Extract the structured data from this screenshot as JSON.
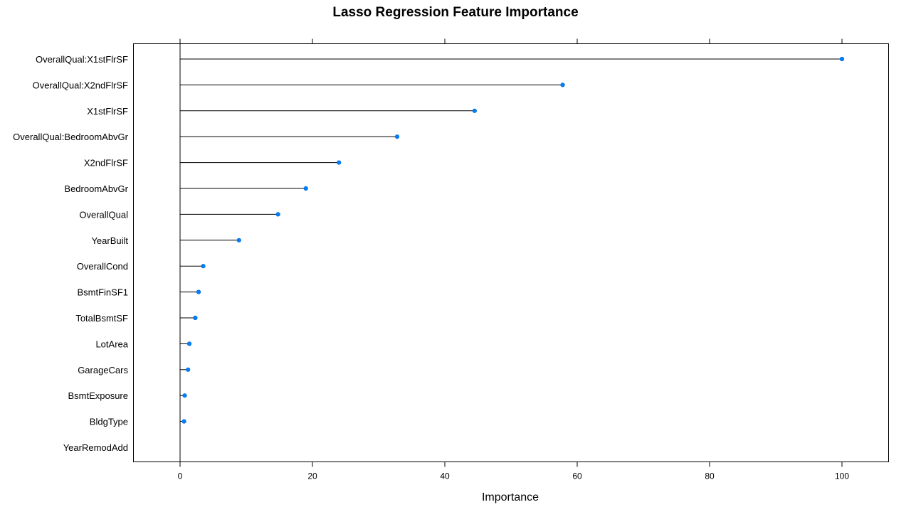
{
  "chart_data": {
    "type": "dot",
    "title": "Lasso Regression Feature Importance",
    "xlabel": "Importance",
    "ylabel": "",
    "xlim": [
      -7,
      107
    ],
    "xticks": [
      0,
      20,
      40,
      60,
      80,
      100
    ],
    "grid": false,
    "point_color": "#0080ff",
    "line_color": "#000000",
    "categories": [
      "OverallQual:X1stFlrSF",
      "OverallQual:X2ndFlrSF",
      "X1stFlrSF",
      "OverallQual:BedroomAbvGr",
      "X2ndFlrSF",
      "BedroomAbvGr",
      "OverallQual",
      "YearBuilt",
      "OverallCond",
      "BsmtFinSF1",
      "TotalBsmtSF",
      "LotArea",
      "GarageCars",
      "BsmtExposure",
      "BldgType",
      "YearRemodAdd"
    ],
    "values": [
      100,
      57.8,
      44.5,
      32.8,
      24.0,
      19.0,
      14.8,
      8.9,
      3.5,
      2.8,
      2.3,
      1.4,
      1.2,
      0.7,
      0.6,
      0
    ]
  }
}
